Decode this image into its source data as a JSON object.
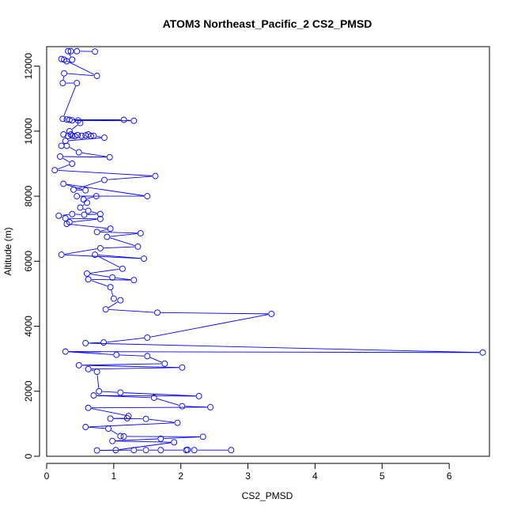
{
  "chart_data": {
    "type": "line",
    "title": "ATOM3 Northeast_Pacific_2 CS2_PMSD",
    "xlabel": "CS2_PMSD",
    "ylabel": "Altitude (m)",
    "xlim": [
      0,
      6.6
    ],
    "ylim": [
      0,
      12600
    ],
    "xticks": [
      "0",
      "1",
      "2",
      "3",
      "4",
      "5",
      "6"
    ],
    "yticks": [
      "0",
      "2000",
      "4000",
      "6000",
      "8000",
      "10000",
      "12000"
    ],
    "grid": false,
    "marker": "open-circle",
    "series_color": "#0000ff",
    "series": [
      {
        "points": [
          [
            0.72,
            12450
          ],
          [
            0.45,
            12460
          ],
          [
            0.36,
            12460
          ],
          [
            0.32,
            12460
          ],
          [
            0.38,
            12200
          ],
          [
            0.3,
            12150
          ],
          [
            0.22,
            12220
          ],
          [
            0.26,
            12200
          ],
          [
            0.75,
            11700
          ],
          [
            0.26,
            11780
          ],
          [
            0.24,
            11480
          ],
          [
            0.45,
            11480
          ],
          [
            0.24,
            10380
          ],
          [
            0.3,
            10360
          ],
          [
            0.34,
            10350
          ],
          [
            1.15,
            10350
          ],
          [
            1.3,
            10320
          ],
          [
            0.38,
            10330
          ],
          [
            0.47,
            10330
          ],
          [
            0.5,
            10250
          ],
          [
            0.34,
            10000
          ],
          [
            0.25,
            9900
          ],
          [
            0.32,
            9850
          ],
          [
            0.36,
            9900
          ],
          [
            0.38,
            9860
          ],
          [
            0.42,
            9850
          ],
          [
            0.46,
            9880
          ],
          [
            0.52,
            9860
          ],
          [
            0.58,
            9870
          ],
          [
            0.62,
            9900
          ],
          [
            0.66,
            9850
          ],
          [
            0.7,
            9860
          ],
          [
            0.86,
            9800
          ],
          [
            0.28,
            9700
          ],
          [
            0.22,
            9550
          ],
          [
            0.3,
            9550
          ],
          [
            0.48,
            9350
          ],
          [
            0.94,
            9200
          ],
          [
            0.2,
            9220
          ],
          [
            0.38,
            9000
          ],
          [
            0.12,
            8800
          ],
          [
            1.62,
            8620
          ],
          [
            0.86,
            8500
          ],
          [
            0.4,
            8200
          ],
          [
            0.58,
            8180
          ],
          [
            0.25,
            8380
          ],
          [
            1.5,
            8000
          ],
          [
            0.45,
            8000
          ],
          [
            0.74,
            8000
          ],
          [
            0.55,
            7900
          ],
          [
            0.6,
            7800
          ],
          [
            0.5,
            7650
          ],
          [
            0.62,
            7550
          ],
          [
            0.8,
            7450
          ],
          [
            0.56,
            7430
          ],
          [
            0.38,
            7450
          ],
          [
            0.18,
            7400
          ],
          [
            0.28,
            7320
          ],
          [
            0.8,
            7300
          ],
          [
            0.34,
            7200
          ],
          [
            0.3,
            7150
          ],
          [
            0.95,
            7000
          ],
          [
            0.75,
            6900
          ],
          [
            1.4,
            6860
          ],
          [
            0.9,
            6750
          ],
          [
            1.36,
            6450
          ],
          [
            0.8,
            6400
          ],
          [
            0.22,
            6200
          ],
          [
            1.45,
            6080
          ],
          [
            0.72,
            6200
          ],
          [
            1.13,
            5770
          ],
          [
            0.6,
            5620
          ],
          [
            0.98,
            5500
          ],
          [
            1.3,
            5420
          ],
          [
            0.62,
            5440
          ],
          [
            0.95,
            5200
          ],
          [
            1.0,
            4850
          ],
          [
            1.1,
            4800
          ],
          [
            0.88,
            4520
          ],
          [
            1.65,
            4420
          ],
          [
            3.35,
            4380
          ],
          [
            1.5,
            3650
          ],
          [
            0.85,
            3500
          ],
          [
            0.58,
            3480
          ],
          [
            6.5,
            3190
          ],
          [
            0.28,
            3220
          ],
          [
            1.04,
            3120
          ],
          [
            1.5,
            3080
          ],
          [
            1.76,
            2850
          ],
          [
            0.48,
            2800
          ],
          [
            2.02,
            2730
          ],
          [
            0.62,
            2680
          ],
          [
            0.75,
            2600
          ],
          [
            0.78,
            2000
          ],
          [
            1.1,
            1960
          ],
          [
            2.27,
            1850
          ],
          [
            0.7,
            1870
          ],
          [
            1.6,
            1800
          ],
          [
            2.02,
            1540
          ],
          [
            2.44,
            1510
          ],
          [
            0.62,
            1490
          ],
          [
            1.22,
            1240
          ],
          [
            1.2,
            1170
          ],
          [
            0.95,
            1160
          ],
          [
            1.48,
            1150
          ],
          [
            1.95,
            1030
          ],
          [
            0.58,
            900
          ],
          [
            0.92,
            850
          ],
          [
            1.1,
            620
          ],
          [
            1.15,
            610
          ],
          [
            2.33,
            600
          ],
          [
            1.7,
            540
          ],
          [
            0.98,
            470
          ],
          [
            1.9,
            430
          ],
          [
            1.03,
            190
          ],
          [
            0.75,
            180
          ],
          [
            1.3,
            190
          ],
          [
            1.48,
            190
          ],
          [
            1.7,
            190
          ],
          [
            2.08,
            190
          ],
          [
            2.1,
            200
          ],
          [
            2.2,
            190
          ],
          [
            2.75,
            190
          ]
        ]
      }
    ]
  }
}
